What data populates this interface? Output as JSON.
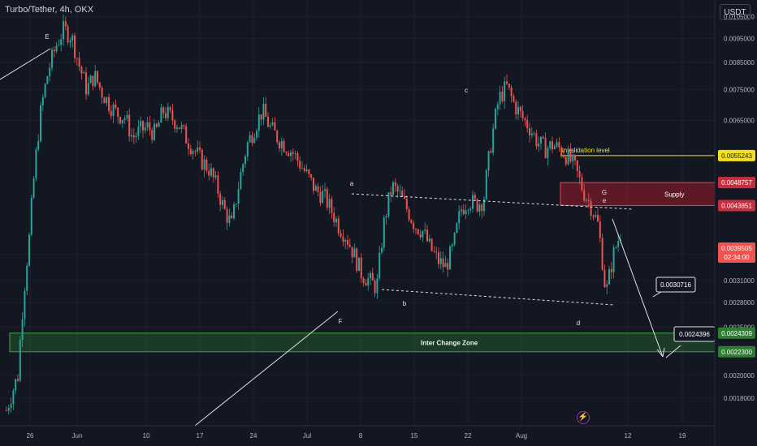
{
  "header": {
    "symbol": "Turbo/Tether, 4h, OKX",
    "currency": "USDT"
  },
  "chart_data": {
    "type": "candlestick",
    "price_scale_ticks": [
      "0.0105000",
      "0.0095000",
      "0.0085000",
      "0.0075000",
      "0.0065000",
      "0.0035000",
      "0.0031000",
      "0.0028000",
      "0.0025000",
      "0.0020000",
      "0.0018000"
    ],
    "x_ticks": [
      "26",
      "Jun",
      "10",
      "17",
      "24",
      "Jul",
      "8",
      "15",
      "22",
      "Aug",
      "12",
      "19"
    ],
    "ylim": [
      0.0017,
      0.011
    ],
    "wave_labels": [
      "E",
      "F",
      "a",
      "b",
      "c",
      "d",
      "G",
      "e"
    ],
    "annotations": {
      "invalidation_label": "invalidation level",
      "invalidation_price": "0.0055243",
      "supply_label": "Supply",
      "supply_top": "0.0048757",
      "supply_bottom": "0.0043851",
      "current_price": "0.0039505",
      "countdown": "02:34:00",
      "target_1": "0.0030716",
      "target_2": "0.0024396",
      "zone_label": "Inter Change Zone",
      "zone_top": "0.0024309",
      "zone_bottom": "0.0022300"
    },
    "colors": {
      "up": "#26a69a",
      "down": "#ef5350",
      "invalidation": "#f5e11b",
      "supply": "#b71c2c",
      "zone": "#2e7d32"
    },
    "price_path": [
      [
        0,
        0.0017
      ],
      [
        0.03,
        0.002
      ],
      [
        0.06,
        0.0038
      ],
      [
        0.09,
        0.0068
      ],
      [
        0.11,
        0.0082
      ],
      [
        0.13,
        0.0092
      ],
      [
        0.15,
        0.0099
      ],
      [
        0.17,
        0.0096
      ],
      [
        0.19,
        0.0084
      ],
      [
        0.21,
        0.0075
      ],
      [
        0.23,
        0.008
      ],
      [
        0.25,
        0.0074
      ],
      [
        0.27,
        0.007
      ],
      [
        0.29,
        0.0067
      ],
      [
        0.31,
        0.0066
      ],
      [
        0.33,
        0.006
      ],
      [
        0.35,
        0.0062
      ],
      [
        0.37,
        0.0063
      ],
      [
        0.39,
        0.0061
      ],
      [
        0.41,
        0.0068
      ],
      [
        0.43,
        0.0066
      ],
      [
        0.45,
        0.0064
      ],
      [
        0.47,
        0.006
      ],
      [
        0.49,
        0.0057
      ],
      [
        0.51,
        0.0054
      ],
      [
        0.53,
        0.0052
      ],
      [
        0.55,
        0.0048
      ],
      [
        0.57,
        0.0043
      ],
      [
        0.59,
        0.004
      ],
      [
        0.61,
        0.0049
      ],
      [
        0.63,
        0.0058
      ],
      [
        0.65,
        0.0063
      ],
      [
        0.67,
        0.0068
      ],
      [
        0.69,
        0.0063
      ],
      [
        0.71,
        0.006
      ],
      [
        0.73,
        0.0058
      ],
      [
        0.75,
        0.0056
      ],
      [
        0.77,
        0.0053
      ],
      [
        0.79,
        0.005
      ],
      [
        0.81,
        0.0047
      ],
      [
        0.83,
        0.0046
      ],
      [
        0.85,
        0.0043
      ],
      [
        0.87,
        0.004
      ],
      [
        0.89,
        0.0038
      ],
      [
        0.91,
        0.0035
      ],
      [
        0.93,
        0.0032
      ],
      [
        0.95,
        0.0031
      ],
      [
        0.97,
        0.003
      ],
      [
        0.99,
        0.0041
      ],
      [
        1.01,
        0.0048
      ],
      [
        1.03,
        0.0046
      ],
      [
        1.05,
        0.0043
      ],
      [
        1.07,
        0.004
      ],
      [
        1.09,
        0.0039
      ],
      [
        1.11,
        0.0036
      ],
      [
        1.13,
        0.0034
      ],
      [
        1.15,
        0.0033
      ],
      [
        1.17,
        0.0036
      ],
      [
        1.19,
        0.0043
      ],
      [
        1.21,
        0.0045
      ],
      [
        1.23,
        0.0044
      ],
      [
        1.25,
        0.0045
      ],
      [
        1.27,
        0.0059
      ],
      [
        1.29,
        0.0072
      ],
      [
        1.31,
        0.0076
      ],
      [
        1.33,
        0.007
      ],
      [
        1.35,
        0.0066
      ],
      [
        1.37,
        0.0063
      ],
      [
        1.39,
        0.0059
      ],
      [
        1.41,
        0.0057
      ],
      [
        1.43,
        0.0058
      ],
      [
        1.45,
        0.0057
      ],
      [
        1.47,
        0.0055
      ],
      [
        1.49,
        0.0052
      ],
      [
        1.51,
        0.0047
      ],
      [
        1.53,
        0.0044
      ],
      [
        1.55,
        0.004
      ],
      [
        1.57,
        0.0029
      ],
      [
        1.59,
        0.0035
      ],
      [
        1.61,
        0.0039
      ]
    ]
  }
}
